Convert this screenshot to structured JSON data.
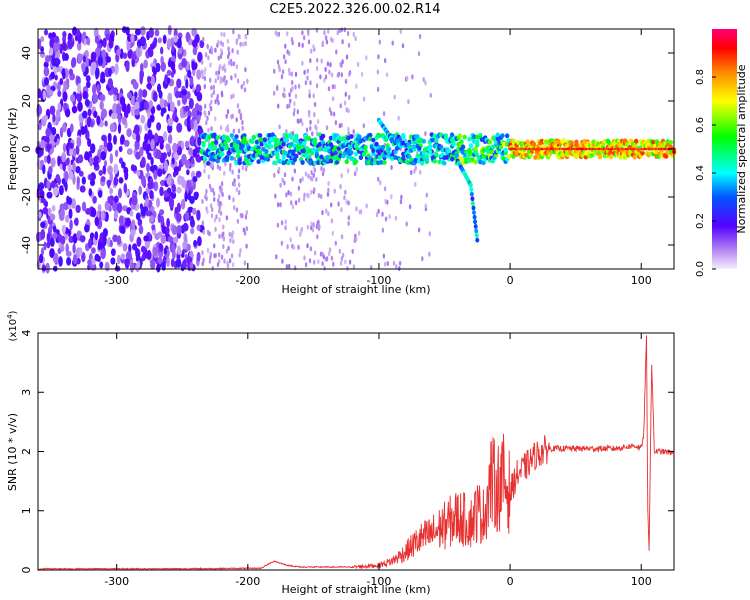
{
  "title": "C2E5.2022.326.00.02.R14",
  "chart_data": [
    {
      "type": "heatmap",
      "xlabel": "Height of straight line (km)",
      "ylabel": "Frequency (Hz)",
      "xlim": [
        -360,
        125
      ],
      "ylim": [
        -50,
        50
      ],
      "xticks": [
        -300,
        -200,
        -100,
        0,
        100
      ],
      "yticks": [
        -40,
        -20,
        0,
        20,
        40
      ],
      "colorbar": {
        "label": "Normalized spectral amplitude",
        "range": [
          0,
          1
        ],
        "ticks": [
          0.0,
          0.2,
          0.4,
          0.6,
          0.8
        ]
      },
      "description_features": {
        "main_trace_frequency_hz": 0,
        "signal_start_km": -235,
        "trace_branch": [
          [
            -100,
            12
          ],
          [
            -90,
            4
          ],
          [
            -40,
            -5
          ],
          [
            -30,
            -15
          ],
          [
            -25,
            -38
          ]
        ]
      }
    },
    {
      "type": "line",
      "xlabel": "Height of straight line (km)",
      "ylabel": "SNR (10 * v/v)",
      "yscale_label": "(x10",
      "yscale_exp": "4",
      "yscale_close": ")",
      "xlim": [
        -360,
        125
      ],
      "ylim": [
        0,
        4
      ],
      "xticks": [
        -300,
        -200,
        -100,
        0,
        100
      ],
      "yticks": [
        0,
        1,
        2,
        3,
        4
      ],
      "series": [
        {
          "color": "#e83030",
          "x": [
            -360,
            -250,
            -190,
            -180,
            -170,
            -160,
            -120,
            -100,
            -90,
            -80,
            -70,
            -60,
            -50,
            -40,
            -30,
            -25,
            -20,
            -15,
            -10,
            -5,
            0,
            5,
            10,
            20,
            30,
            40,
            60,
            80,
            95,
            100,
            102,
            104,
            105,
            106,
            107,
            108,
            110,
            115,
            125
          ],
          "y": [
            0.02,
            0.02,
            0.03,
            0.15,
            0.08,
            0.05,
            0.05,
            0.08,
            0.15,
            0.3,
            0.5,
            0.6,
            0.75,
            0.9,
            0.8,
            1.0,
            0.9,
            1.5,
            1.4,
            1.5,
            1.3,
            1.6,
            1.7,
            1.95,
            2.05,
            2.05,
            2.05,
            2.05,
            2.1,
            2.05,
            2.3,
            4.0,
            1.0,
            0.3,
            2.0,
            3.5,
            2.0,
            2.0,
            1.98
          ]
        }
      ]
    }
  ]
}
